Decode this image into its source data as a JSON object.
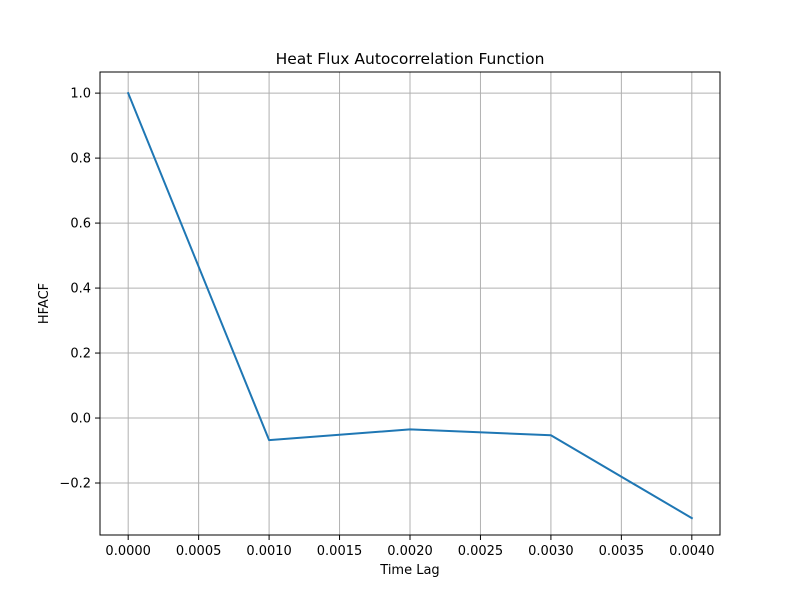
{
  "chart_data": {
    "type": "line",
    "title": "Heat Flux Autocorrelation Function",
    "xlabel": "Time Lag",
    "ylabel": "HFACF",
    "xlim": [
      -0.0002,
      0.0042
    ],
    "ylim": [
      -0.36,
      1.065
    ],
    "grid": true,
    "x_ticks": [
      0.0,
      0.0005,
      0.001,
      0.0015,
      0.002,
      0.0025,
      0.003,
      0.0035,
      0.004
    ],
    "x_tick_labels": [
      "0.0000",
      "0.0005",
      "0.0010",
      "0.0015",
      "0.0020",
      "0.0025",
      "0.0030",
      "0.0035",
      "0.0040"
    ],
    "y_ticks": [
      -0.2,
      0.0,
      0.2,
      0.4,
      0.6,
      0.8,
      1.0
    ],
    "y_tick_labels": [
      "−0.2",
      "0.0",
      "0.2",
      "0.4",
      "0.6",
      "0.8",
      "1.0"
    ],
    "series": [
      {
        "color": "#1f77b4",
        "x": [
          0.0,
          0.001,
          0.002,
          0.003,
          0.004
        ],
        "y": [
          1.0,
          -0.068,
          -0.035,
          -0.053,
          -0.308
        ]
      }
    ]
  }
}
